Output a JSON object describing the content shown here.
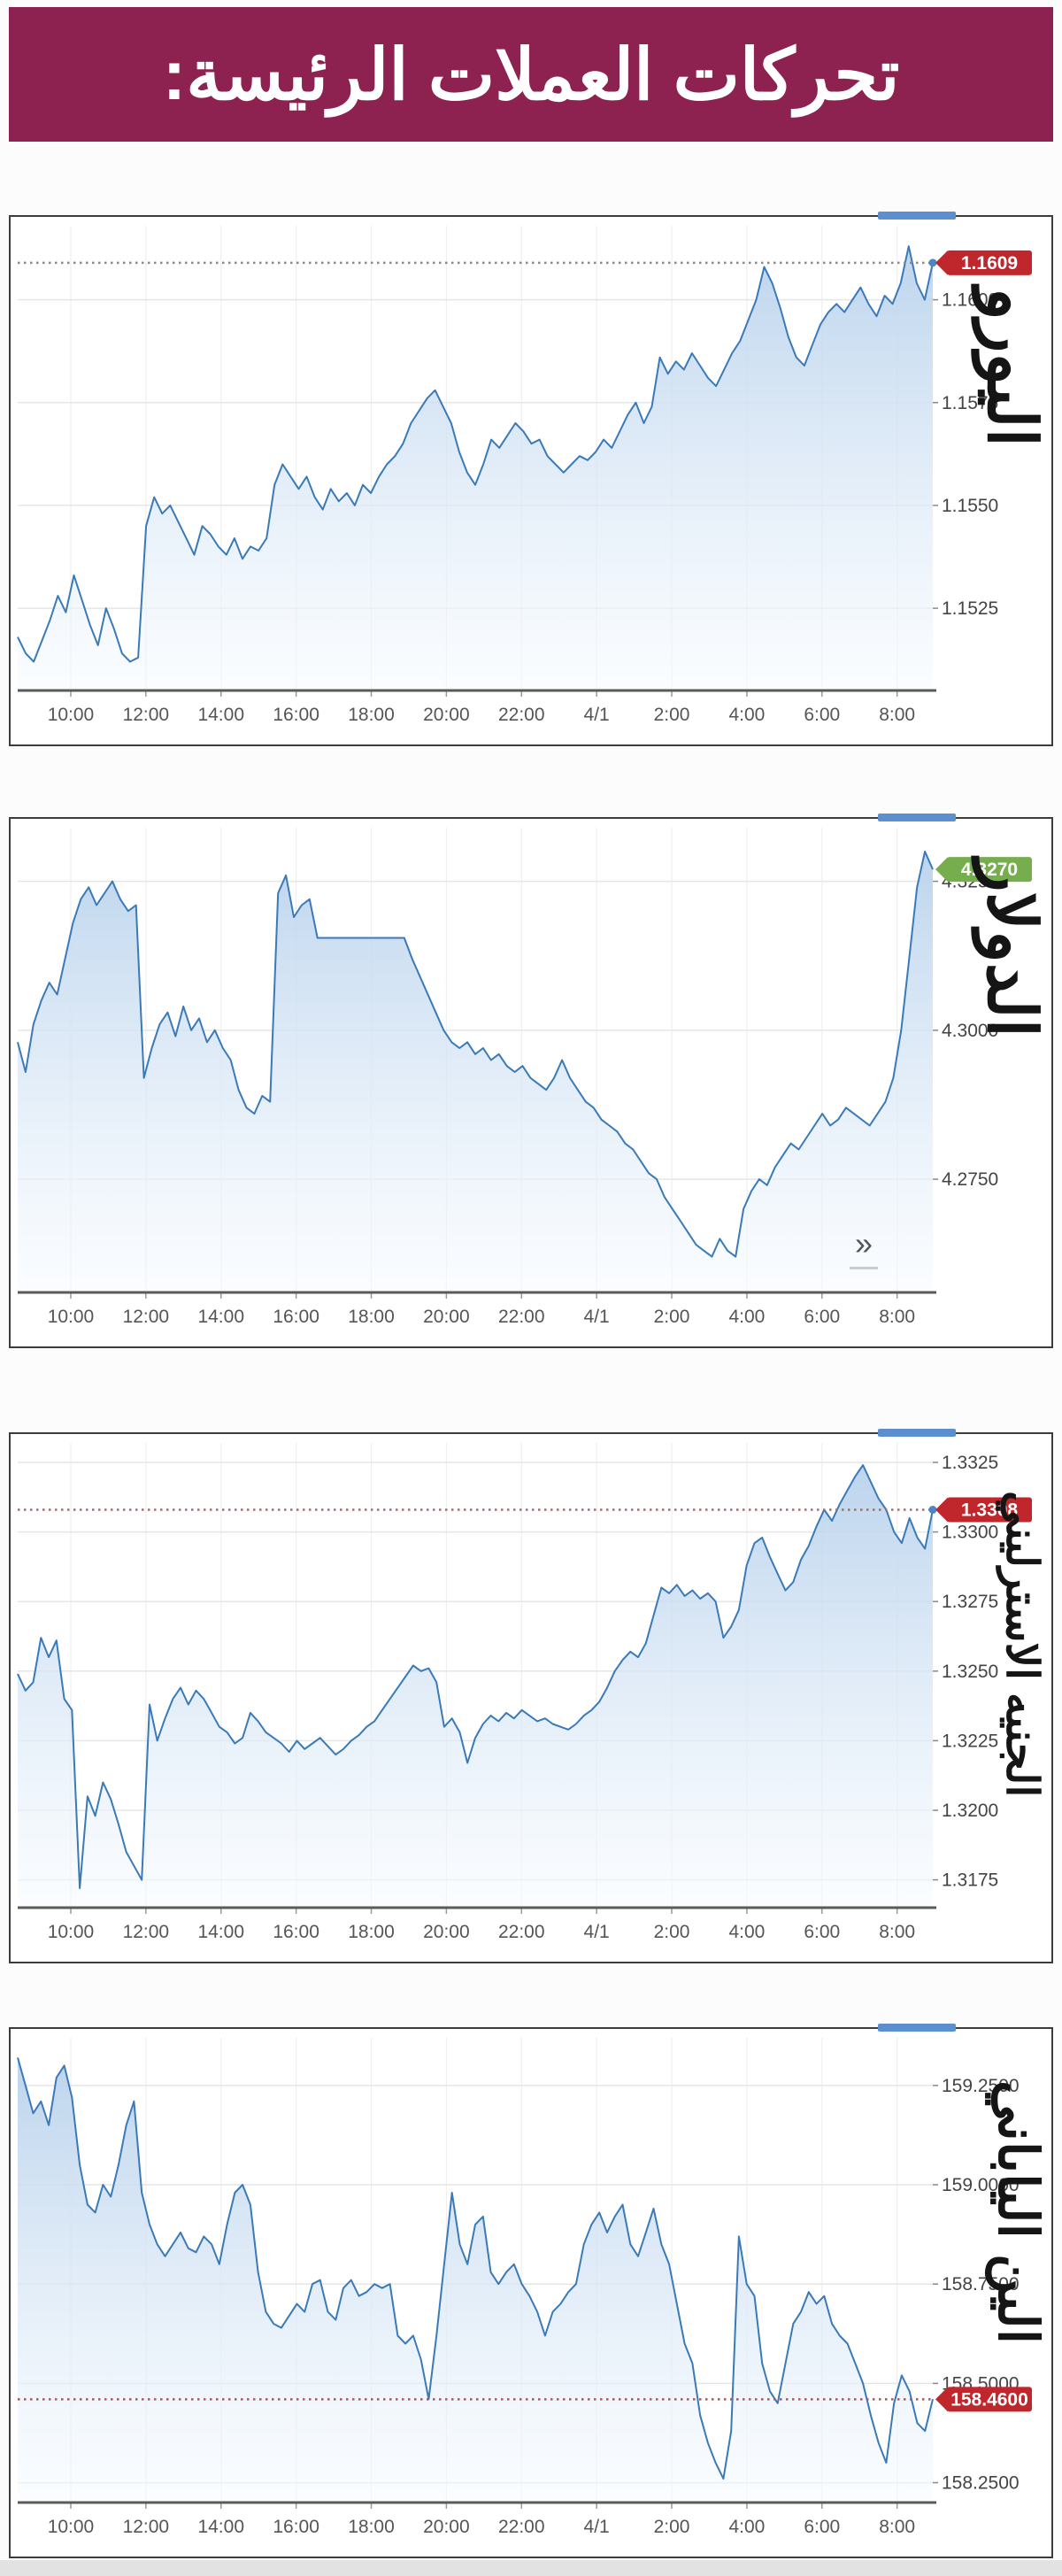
{
  "header": {
    "title": "تحركات العملات الرئيسة:"
  },
  "colors": {
    "header_bg": "#8d2150",
    "line": "#3a7ab8",
    "fill_top": "#b9d2ec",
    "fill_bottom": "#f7fbff",
    "badge_red": "#c0272d",
    "badge_green": "#77ae4d",
    "axis": "#5a5a5a",
    "grid": "#e6e6e6",
    "vgrid": "#efefef",
    "tick_text": "#555555",
    "handle_blue": "#5b8fd0",
    "end_dot": "#4a86c8"
  },
  "x_ticks": [
    "10:00",
    "12:00",
    "14:00",
    "16:00",
    "18:00",
    "20:00",
    "22:00",
    "4/1",
    "2:00",
    "4:00",
    "6:00",
    "8:00"
  ],
  "chart_data": [
    {
      "type": "area",
      "id": "euro",
      "name": "اليورو",
      "badge": {
        "label": "1.1609",
        "value": 1.1609,
        "color": "red"
      },
      "dashed_value": 1.1609,
      "dash_color": "#8a8a8a",
      "show_end_dot": true,
      "y_min": 1.1505,
      "y_max": 1.1618,
      "y_ticks": [
        {
          "value": 1.16,
          "label": "1.1600"
        },
        {
          "value": 1.1575,
          "label": "1.1575"
        },
        {
          "value": 1.155,
          "label": "1.1550"
        },
        {
          "value": 1.1525,
          "label": "1.1525"
        }
      ],
      "series": [
        1.1518,
        1.1514,
        1.1512,
        1.1517,
        1.1522,
        1.1528,
        1.1524,
        1.1533,
        1.1527,
        1.1521,
        1.1516,
        1.1525,
        1.152,
        1.1514,
        1.1512,
        1.1513,
        1.1545,
        1.1552,
        1.1548,
        1.155,
        1.1546,
        1.1542,
        1.1538,
        1.1545,
        1.1543,
        1.154,
        1.1538,
        1.1542,
        1.1537,
        1.154,
        1.1539,
        1.1542,
        1.1555,
        1.156,
        1.1557,
        1.1554,
        1.1557,
        1.1552,
        1.1549,
        1.1554,
        1.1551,
        1.1553,
        1.155,
        1.1555,
        1.1553,
        1.1557,
        1.156,
        1.1562,
        1.1565,
        1.157,
        1.1573,
        1.1576,
        1.1578,
        1.1574,
        1.157,
        1.1563,
        1.1558,
        1.1555,
        1.156,
        1.1566,
        1.1564,
        1.1567,
        1.157,
        1.1568,
        1.1565,
        1.1566,
        1.1562,
        1.156,
        1.1558,
        1.156,
        1.1562,
        1.1561,
        1.1563,
        1.1566,
        1.1564,
        1.1568,
        1.1572,
        1.1575,
        1.157,
        1.1574,
        1.1586,
        1.1582,
        1.1585,
        1.1583,
        1.1587,
        1.1584,
        1.1581,
        1.1579,
        1.1583,
        1.1587,
        1.159,
        1.1595,
        1.16,
        1.1608,
        1.1604,
        1.1598,
        1.1591,
        1.1586,
        1.1584,
        1.1589,
        1.1594,
        1.1597,
        1.1599,
        1.1597,
        1.16,
        1.1603,
        1.1599,
        1.1596,
        1.1601,
        1.1599,
        1.1604,
        1.1613,
        1.1604,
        1.16,
        1.1609
      ]
    },
    {
      "type": "area",
      "id": "dollar",
      "name": "الدولار",
      "badge": {
        "label": "4.3270",
        "value": 4.327,
        "color": "green"
      },
      "dashed_value": null,
      "dash_color": null,
      "show_end_dot": false,
      "more_symbol": "»",
      "y_min": 4.256,
      "y_max": 4.334,
      "y_ticks": [
        {
          "value": 4.325,
          "label": "4.3250"
        },
        {
          "value": 4.3,
          "label": "4.3000"
        },
        {
          "value": 4.275,
          "label": "4.2750"
        }
      ],
      "series": [
        4.298,
        4.293,
        4.301,
        4.305,
        4.308,
        4.306,
        4.312,
        4.318,
        4.322,
        4.324,
        4.321,
        4.323,
        4.325,
        4.322,
        4.32,
        4.321,
        4.292,
        4.297,
        4.301,
        4.303,
        4.299,
        4.304,
        4.3,
        4.302,
        4.298,
        4.3,
        4.297,
        4.295,
        4.29,
        4.287,
        4.286,
        4.289,
        4.288,
        4.323,
        4.326,
        4.319,
        4.321,
        4.322,
        4.3155,
        4.3155,
        4.3155,
        4.3155,
        4.3155,
        4.3155,
        4.3155,
        4.3155,
        4.3155,
        4.3155,
        4.3155,
        4.3155,
        4.312,
        4.309,
        4.306,
        4.303,
        4.3,
        4.298,
        4.297,
        4.298,
        4.296,
        4.297,
        4.295,
        4.296,
        4.294,
        4.293,
        4.294,
        4.292,
        4.291,
        4.29,
        4.292,
        4.295,
        4.292,
        4.29,
        4.288,
        4.287,
        4.285,
        4.284,
        4.283,
        4.281,
        4.28,
        4.278,
        4.276,
        4.275,
        4.272,
        4.27,
        4.268,
        4.266,
        4.264,
        4.263,
        4.262,
        4.265,
        4.263,
        4.262,
        4.27,
        4.273,
        4.275,
        4.274,
        4.277,
        4.279,
        4.281,
        4.28,
        4.282,
        4.284,
        4.286,
        4.284,
        4.285,
        4.287,
        4.286,
        4.285,
        4.284,
        4.286,
        4.288,
        4.292,
        4.3,
        4.312,
        4.324,
        4.33,
        4.327
      ]
    },
    {
      "type": "area",
      "id": "sterling",
      "name": "الجنيه الاسترليني",
      "badge": {
        "label": "1.3308",
        "value": 1.3308,
        "color": "red"
      },
      "dashed_value": 1.3308,
      "dash_color": "#9a7070",
      "show_end_dot": true,
      "y_min": 1.3165,
      "y_max": 1.3332,
      "y_ticks": [
        {
          "value": 1.3325,
          "label": "1.3325"
        },
        {
          "value": 1.33,
          "label": "1.3300"
        },
        {
          "value": 1.3275,
          "label": "1.3275"
        },
        {
          "value": 1.325,
          "label": "1.3250"
        },
        {
          "value": 1.3225,
          "label": "1.3225"
        },
        {
          "value": 1.32,
          "label": "1.3200"
        },
        {
          "value": 1.3175,
          "label": "1.3175"
        }
      ],
      "series": [
        1.3249,
        1.3243,
        1.3246,
        1.3262,
        1.3255,
        1.3261,
        1.324,
        1.3236,
        1.3172,
        1.3205,
        1.3198,
        1.321,
        1.3204,
        1.3195,
        1.3185,
        1.318,
        1.3175,
        1.3238,
        1.3225,
        1.3233,
        1.324,
        1.3244,
        1.3238,
        1.3243,
        1.324,
        1.3235,
        1.323,
        1.3228,
        1.3224,
        1.3226,
        1.3235,
        1.3232,
        1.3228,
        1.3226,
        1.3224,
        1.3221,
        1.3225,
        1.3222,
        1.3224,
        1.3226,
        1.3223,
        1.322,
        1.3222,
        1.3225,
        1.3227,
        1.323,
        1.3232,
        1.3236,
        1.324,
        1.3244,
        1.3248,
        1.3252,
        1.325,
        1.3251,
        1.3246,
        1.323,
        1.3233,
        1.3228,
        1.3217,
        1.3226,
        1.3231,
        1.3234,
        1.3232,
        1.3235,
        1.3233,
        1.3236,
        1.3234,
        1.3232,
        1.3233,
        1.3231,
        1.323,
        1.3229,
        1.3231,
        1.3234,
        1.3236,
        1.3239,
        1.3244,
        1.325,
        1.3254,
        1.3257,
        1.3255,
        1.326,
        1.327,
        1.328,
        1.3278,
        1.3281,
        1.3277,
        1.3279,
        1.3276,
        1.3278,
        1.3275,
        1.3262,
        1.3266,
        1.3272,
        1.3288,
        1.3296,
        1.3298,
        1.3291,
        1.3285,
        1.3279,
        1.3282,
        1.329,
        1.3295,
        1.3302,
        1.3308,
        1.3304,
        1.331,
        1.3315,
        1.332,
        1.3324,
        1.3318,
        1.3312,
        1.3308,
        1.33,
        1.3296,
        1.3305,
        1.3298,
        1.3294,
        1.3308
      ]
    },
    {
      "type": "area",
      "id": "yen",
      "name": "الين الياباني",
      "badge": {
        "label": "158.4600",
        "value": 158.46,
        "color": "red"
      },
      "dashed_value": 158.46,
      "dash_color": "#b05555",
      "show_end_dot": false,
      "y_min": 158.2,
      "y_max": 159.37,
      "y_ticks": [
        {
          "value": 159.25,
          "label": "159.2500"
        },
        {
          "value": 159.0,
          "label": "159.0000"
        },
        {
          "value": 158.75,
          "label": "158.7500"
        },
        {
          "value": 158.5,
          "label": "158.5000"
        },
        {
          "value": 158.25,
          "label": "158.2500"
        }
      ],
      "series": [
        159.32,
        159.25,
        159.18,
        159.21,
        159.15,
        159.27,
        159.3,
        159.22,
        159.05,
        158.95,
        158.93,
        159.0,
        158.97,
        159.05,
        159.15,
        159.21,
        158.98,
        158.9,
        158.85,
        158.82,
        158.85,
        158.88,
        158.84,
        158.83,
        158.87,
        158.85,
        158.8,
        158.9,
        158.98,
        159.0,
        158.95,
        158.78,
        158.68,
        158.65,
        158.64,
        158.67,
        158.7,
        158.68,
        158.75,
        158.76,
        158.68,
        158.66,
        158.74,
        158.76,
        158.72,
        158.73,
        158.75,
        158.74,
        158.75,
        158.62,
        158.6,
        158.62,
        158.56,
        158.46,
        158.62,
        158.8,
        158.98,
        158.85,
        158.8,
        158.9,
        158.92,
        158.78,
        158.75,
        158.78,
        158.8,
        158.75,
        158.72,
        158.68,
        158.62,
        158.68,
        158.7,
        158.73,
        158.75,
        158.85,
        158.9,
        158.93,
        158.88,
        158.92,
        158.95,
        158.85,
        158.82,
        158.88,
        158.94,
        158.85,
        158.8,
        158.7,
        158.6,
        158.55,
        158.42,
        158.35,
        158.3,
        158.26,
        158.38,
        158.87,
        158.75,
        158.72,
        158.55,
        158.48,
        158.45,
        158.55,
        158.65,
        158.68,
        158.73,
        158.7,
        158.72,
        158.65,
        158.62,
        158.6,
        158.55,
        158.5,
        158.42,
        158.35,
        158.3,
        158.45,
        158.52,
        158.48,
        158.4,
        158.38,
        158.46
      ]
    }
  ]
}
